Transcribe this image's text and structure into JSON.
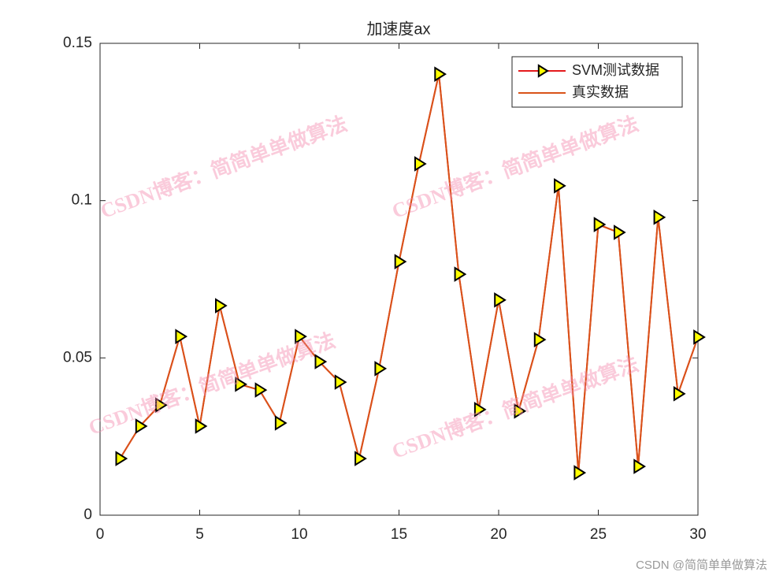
{
  "chart_data": {
    "type": "line",
    "title": "加速度ax",
    "x": [
      1,
      2,
      3,
      4,
      5,
      6,
      7,
      8,
      9,
      10,
      11,
      12,
      13,
      14,
      15,
      16,
      17,
      18,
      19,
      20,
      21,
      22,
      23,
      24,
      25,
      26,
      27,
      28,
      29,
      30
    ],
    "series": [
      {
        "name": "SVM测试数据",
        "color": "#e41a1c",
        "marker": "triangle-right",
        "marker_color": "#ffff00",
        "values": [
          0.018,
          0.0283,
          0.035,
          0.0568,
          0.0283,
          0.0666,
          0.0416,
          0.0398,
          0.0293,
          0.0568,
          0.0488,
          0.0423,
          0.018,
          0.0466,
          0.0806,
          0.1117,
          0.1402,
          0.0766,
          0.0336,
          0.0684,
          0.0331,
          0.0558,
          0.1047,
          0.0135,
          0.0924,
          0.0899,
          0.0155,
          0.0947,
          0.0386,
          0.0566
        ]
      },
      {
        "name": "真实数据",
        "color": "#d95319",
        "values": [
          0.018,
          0.0283,
          0.035,
          0.0568,
          0.0283,
          0.0666,
          0.0416,
          0.0398,
          0.0293,
          0.0568,
          0.0488,
          0.0423,
          0.018,
          0.0466,
          0.0806,
          0.1117,
          0.1402,
          0.0766,
          0.0336,
          0.0684,
          0.0331,
          0.0558,
          0.1047,
          0.0135,
          0.0924,
          0.0899,
          0.0155,
          0.0947,
          0.0386,
          0.0566
        ]
      }
    ],
    "xlim": [
      0,
      30
    ],
    "xticks": [
      0,
      5,
      10,
      15,
      20,
      25,
      30
    ],
    "ylim": [
      0,
      0.15
    ],
    "yticks": [
      0,
      0.05,
      0.1,
      0.15
    ],
    "grid": false,
    "legend": "top-right"
  },
  "watermark": "CSDN博客：简简单单做算法",
  "footer": "CSDN @简简单单做算法"
}
